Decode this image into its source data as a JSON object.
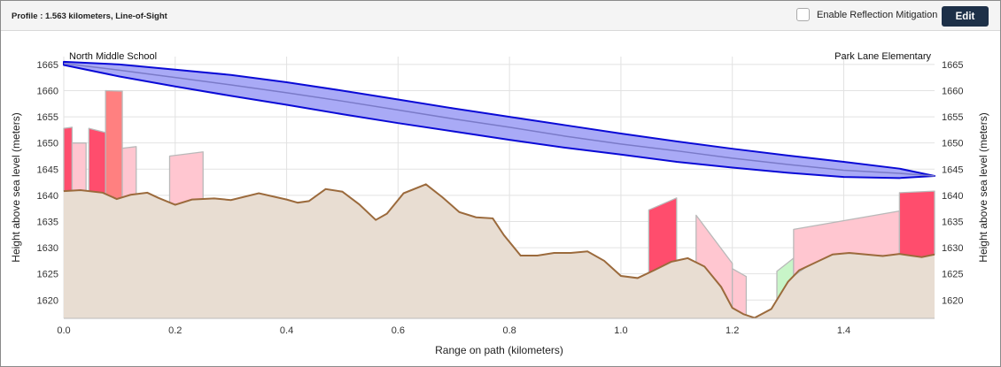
{
  "header": {
    "title": "Profile : 1.563 kilometers, Line-of-Sight",
    "mitigation_label": "Enable Reflection Mitigation",
    "mitigation_checked": false,
    "edit_label": "Edit"
  },
  "colors": {
    "terrain_fill": "#e8ddd2",
    "terrain_line": "#9b6a3c",
    "fresnel_fill": "#a9aaf6",
    "fresnel_stroke": "#0a0ad6",
    "los_line": "#7a7ac8",
    "obstruction_red": "#ff4d6d",
    "obstruction_salmon": "#ff8080",
    "clear_pink": "#ffc6d0",
    "clear_green": "#c8f5c8",
    "grid": "#e2e2e2",
    "header_bg": "#f4f4f4",
    "edit_bg": "#1d3048"
  },
  "chart_data": {
    "type": "area",
    "xlabel": "Range on path (kilometers)",
    "ylabel_left": "Height above sea level (meters)",
    "ylabel_right": "Height above sea level (meters)",
    "xlim": [
      0,
      1.563
    ],
    "ylim": [
      1616.5,
      1666.5
    ],
    "x_ticks": [
      0.0,
      0.2,
      0.4,
      0.6,
      0.8,
      1.0,
      1.2,
      1.4
    ],
    "x_tick_labels": [
      "0.0",
      "0.2",
      "0.4",
      "0.6",
      "0.8",
      "1.0",
      "1.2",
      "1.4"
    ],
    "y_ticks": [
      1620,
      1625,
      1630,
      1635,
      1640,
      1645,
      1650,
      1655,
      1660,
      1665
    ],
    "grid": true,
    "endpoints": {
      "start": {
        "label": "North Middle School",
        "x": 0.0,
        "height": 1665
      },
      "end": {
        "label": "Park Lane Elementary",
        "x": 1.563,
        "height": 1644
      }
    },
    "terrain": {
      "name": "Terrain",
      "x": [
        0.0,
        0.03,
        0.07,
        0.095,
        0.12,
        0.15,
        0.17,
        0.2,
        0.23,
        0.27,
        0.3,
        0.35,
        0.4,
        0.42,
        0.44,
        0.47,
        0.5,
        0.53,
        0.56,
        0.58,
        0.61,
        0.65,
        0.68,
        0.71,
        0.74,
        0.77,
        0.79,
        0.82,
        0.85,
        0.88,
        0.91,
        0.94,
        0.97,
        1.0,
        1.03,
        1.06,
        1.09,
        1.12,
        1.15,
        1.18,
        1.2,
        1.22,
        1.24,
        1.27,
        1.3,
        1.32,
        1.35,
        1.38,
        1.41,
        1.44,
        1.47,
        1.5,
        1.52,
        1.54,
        1.563
      ],
      "y": [
        1640.8,
        1641.0,
        1640.5,
        1639.3,
        1640.1,
        1640.5,
        1639.5,
        1638.2,
        1639.2,
        1639.4,
        1639.1,
        1640.4,
        1639.2,
        1638.6,
        1638.9,
        1641.2,
        1640.7,
        1638.3,
        1635.3,
        1636.5,
        1640.4,
        1642.1,
        1639.6,
        1636.8,
        1635.8,
        1635.6,
        1632.4,
        1628.5,
        1628.5,
        1629.0,
        1629.0,
        1629.3,
        1627.5,
        1624.6,
        1624.2,
        1625.7,
        1627.3,
        1628.0,
        1626.4,
        1622.5,
        1618.5,
        1617.3,
        1616.6,
        1618.3,
        1623.5,
        1625.7,
        1627.2,
        1628.7,
        1629.0,
        1628.7,
        1628.4,
        1628.8,
        1628.5,
        1628.2,
        1628.7
      ]
    },
    "fresnel_zone": {
      "name": "Fresnel zone",
      "x": [
        0.0,
        0.1,
        0.2,
        0.3,
        0.4,
        0.5,
        0.6,
        0.7,
        0.8,
        0.9,
        1.0,
        1.1,
        1.2,
        1.3,
        1.4,
        1.5,
        1.563
      ],
      "upper": [
        1665.5,
        1665.0,
        1664.0,
        1663.0,
        1661.6,
        1660.0,
        1658.3,
        1656.6,
        1655.0,
        1653.4,
        1651.8,
        1650.3,
        1648.9,
        1647.6,
        1646.4,
        1645.1,
        1643.7
      ],
      "lower": [
        1664.9,
        1662.7,
        1660.8,
        1659.0,
        1657.3,
        1655.5,
        1653.8,
        1652.2,
        1650.6,
        1649.1,
        1647.8,
        1646.4,
        1645.3,
        1644.3,
        1643.5,
        1643.3,
        1643.7
      ],
      "los": [
        1665.2,
        1663.9,
        1662.5,
        1661.1,
        1659.6,
        1658.0,
        1656.3,
        1654.6,
        1653.0,
        1651.3,
        1649.8,
        1648.5,
        1647.1,
        1645.9,
        1644.8,
        1644.2,
        1643.7
      ]
    },
    "obstructions": [
      {
        "kind": "red",
        "x": [
          0.0,
          0.015
        ],
        "top": [
          1652.8,
          1653.0
        ]
      },
      {
        "kind": "pink",
        "x": [
          0.015,
          0.04
        ],
        "top": [
          1650.0,
          1650.0
        ]
      },
      {
        "kind": "red",
        "x": [
          0.045,
          0.075
        ],
        "top": [
          1652.8,
          1652.0
        ]
      },
      {
        "kind": "salmon",
        "x": [
          0.075,
          0.105
        ],
        "top": [
          1660.0,
          1659.9
        ]
      },
      {
        "kind": "pink",
        "x": [
          0.105,
          0.13
        ],
        "top": [
          1649.0,
          1649.3
        ]
      },
      {
        "kind": "pink",
        "x": [
          0.19,
          0.25
        ],
        "top": [
          1647.5,
          1648.3
        ]
      },
      {
        "kind": "red",
        "x": [
          1.05,
          1.1
        ],
        "top": [
          1637.2,
          1639.5
        ]
      },
      {
        "kind": "pink",
        "x": [
          1.135,
          1.2
        ],
        "top": [
          1636.2,
          1627.0
        ]
      },
      {
        "kind": "pink",
        "x": [
          1.2,
          1.225
        ],
        "top": [
          1626.0,
          1624.5
        ]
      },
      {
        "kind": "green",
        "x": [
          1.28,
          1.31
        ],
        "top": [
          1625.5,
          1628.0
        ]
      },
      {
        "kind": "pink",
        "x": [
          1.31,
          1.5
        ],
        "top": [
          1633.5,
          1637.0
        ]
      },
      {
        "kind": "red",
        "x": [
          1.5,
          1.563
        ],
        "top": [
          1640.5,
          1640.8
        ]
      }
    ]
  }
}
